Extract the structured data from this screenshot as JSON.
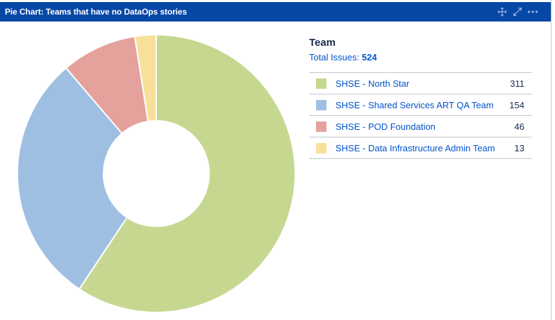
{
  "gadget": {
    "title": "Pie Chart: Teams that have no DataOps stories",
    "icons": [
      "move-icon",
      "expand-icon",
      "more-options-icon"
    ]
  },
  "legend": {
    "heading": "Team",
    "total_label": "Total Issues:",
    "total_value": "524"
  },
  "colors": {
    "header_bg": "#0747a6",
    "link": "#0052cc"
  },
  "chart_data": {
    "type": "pie",
    "donut": true,
    "title": "Team",
    "total": 524,
    "categories": [
      "SHSE - North Star",
      "SHSE - Shared Services ART QA Team",
      "SHSE - POD Foundation",
      "SHSE - Data Infrastructure Admin Team"
    ],
    "values": [
      311,
      154,
      46,
      13
    ],
    "colors": [
      "#c6d890",
      "#9fbfe2",
      "#e5a19b",
      "#f8e09b"
    ],
    "start_angle": "top, clockwise",
    "legend_placement": "right"
  }
}
